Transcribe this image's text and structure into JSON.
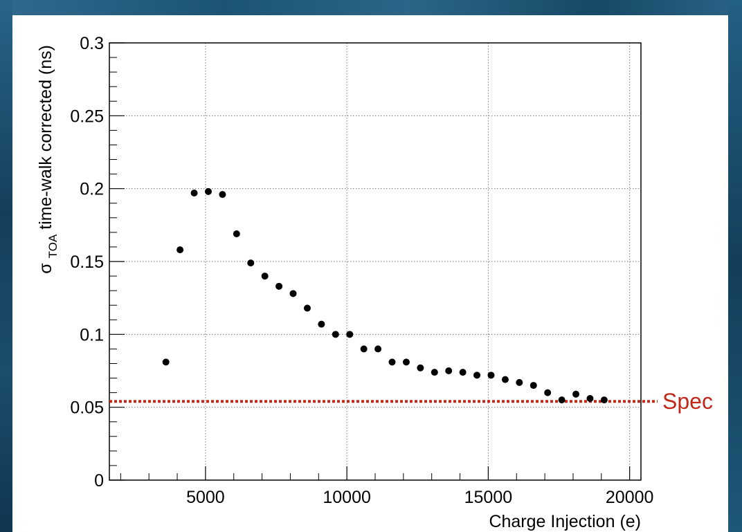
{
  "chart_data": {
    "type": "scatter",
    "title": "",
    "xlabel": "Charge Injection (e)",
    "ylabel": {
      "main": "σ",
      "subscript": "TOA",
      "rest": " time-walk corrected (ns)"
    },
    "xlim": [
      1600,
      20400
    ],
    "ylim": [
      0,
      0.3
    ],
    "x_ticks": [
      5000,
      10000,
      15000,
      20000
    ],
    "x_tick_labels": [
      "5000",
      "10000",
      "15000",
      "20000"
    ],
    "y_ticks": [
      0,
      0.05,
      0.1,
      0.15,
      0.2,
      0.25,
      0.3
    ],
    "y_tick_labels": [
      "0",
      "0.05",
      "0.1",
      "0.15",
      "0.2",
      "0.25",
      "0.3"
    ],
    "grid": true,
    "series": [
      {
        "x": [
          3600,
          4100,
          4600,
          5100,
          5600,
          6100,
          6600,
          7100,
          7600,
          8100,
          8600,
          9100,
          9600,
          10100,
          10600,
          11100,
          11600,
          12100,
          12600,
          13100,
          13600,
          14100,
          14600,
          15100,
          15600,
          16100,
          16600,
          17100,
          17600,
          18100,
          18600,
          19100
        ],
        "y": [
          0.081,
          0.158,
          0.197,
          0.198,
          0.196,
          0.169,
          0.149,
          0.14,
          0.133,
          0.128,
          0.118,
          0.107,
          0.1,
          0.1,
          0.09,
          0.09,
          0.081,
          0.081,
          0.077,
          0.074,
          0.075,
          0.074,
          0.072,
          0.072,
          0.069,
          0.067,
          0.065,
          0.06,
          0.055,
          0.059,
          0.056,
          0.055
        ]
      }
    ],
    "reference_line": {
      "label": "Spec",
      "y": 0.054,
      "color": "#c0281a"
    }
  }
}
